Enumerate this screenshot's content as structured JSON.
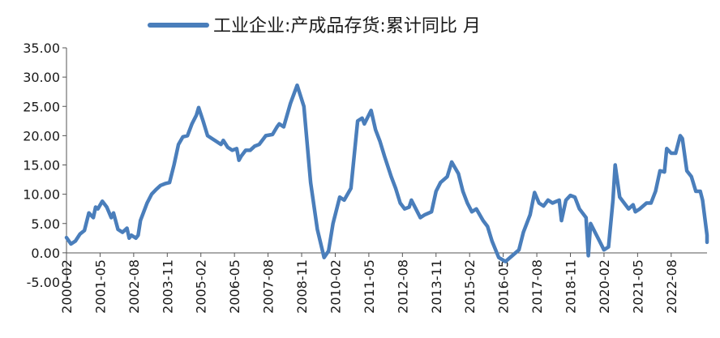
{
  "chart_data": {
    "type": "line",
    "legend": {
      "position": "top"
    },
    "grid": false,
    "ylim": [
      -5,
      35
    ],
    "y_ticks": [
      "35.00",
      "30.00",
      "25.00",
      "20.00",
      "15.00",
      "10.00",
      "5.00",
      "0.00",
      "-5.00"
    ],
    "x_range": [
      "2000-02",
      "2023-12"
    ],
    "x_ticks": [
      "2000-02",
      "2001-05",
      "2002-08",
      "2003-11",
      "2005-02",
      "2006-05",
      "2007-08",
      "2008-11",
      "2010-02",
      "2011-05",
      "2012-08",
      "2013-11",
      "2015-02",
      "2016-05",
      "2017-08",
      "2018-11",
      "2020-02",
      "2021-05",
      "2022-08"
    ],
    "series": [
      {
        "name": "工业企业:产成品存货:累计同比 月",
        "color": "#4a7ebb",
        "points": [
          [
            "2000-02",
            2.6
          ],
          [
            "2000-04",
            1.5
          ],
          [
            "2000-06",
            2.0
          ],
          [
            "2000-08",
            3.2
          ],
          [
            "2000-10",
            3.8
          ],
          [
            "2000-12",
            6.8
          ],
          [
            "2001-02",
            6.0
          ],
          [
            "2001-03",
            7.8
          ],
          [
            "2001-04",
            7.5
          ],
          [
            "2001-06",
            8.8
          ],
          [
            "2001-08",
            7.8
          ],
          [
            "2001-10",
            6.0
          ],
          [
            "2001-11",
            6.8
          ],
          [
            "2002-01",
            4.0
          ],
          [
            "2002-03",
            3.5
          ],
          [
            "2002-05",
            4.2
          ],
          [
            "2002-06",
            2.5
          ],
          [
            "2002-07",
            3.0
          ],
          [
            "2002-09",
            2.5
          ],
          [
            "2002-10",
            3.0
          ],
          [
            "2002-11",
            5.5
          ],
          [
            "2003-02",
            8.5
          ],
          [
            "2003-04",
            10.0
          ],
          [
            "2003-06",
            10.8
          ],
          [
            "2003-08",
            11.5
          ],
          [
            "2003-10",
            11.8
          ],
          [
            "2003-12",
            12.0
          ],
          [
            "2004-02",
            15.0
          ],
          [
            "2004-04",
            18.5
          ],
          [
            "2004-06",
            19.8
          ],
          [
            "2004-08",
            20.0
          ],
          [
            "2004-10",
            22.0
          ],
          [
            "2004-12",
            23.5
          ],
          [
            "2005-01",
            24.8
          ],
          [
            "2005-03",
            22.5
          ],
          [
            "2005-05",
            20.0
          ],
          [
            "2005-07",
            19.5
          ],
          [
            "2005-09",
            19.0
          ],
          [
            "2005-11",
            18.5
          ],
          [
            "2005-12",
            19.2
          ],
          [
            "2006-02",
            18.0
          ],
          [
            "2006-04",
            17.5
          ],
          [
            "2006-06",
            17.8
          ],
          [
            "2006-07",
            15.8
          ],
          [
            "2006-08",
            16.5
          ],
          [
            "2006-10",
            17.5
          ],
          [
            "2006-12",
            17.5
          ],
          [
            "2007-02",
            18.2
          ],
          [
            "2007-04",
            18.5
          ],
          [
            "2007-06",
            19.5
          ],
          [
            "2007-07",
            20.0
          ],
          [
            "2007-10",
            20.2
          ],
          [
            "2007-12",
            21.5
          ],
          [
            "2008-01",
            22.0
          ],
          [
            "2008-03",
            21.5
          ],
          [
            "2008-06",
            25.5
          ],
          [
            "2008-09",
            28.6
          ],
          [
            "2008-12",
            25.0
          ],
          [
            "2009-03",
            12.0
          ],
          [
            "2009-06",
            4.0
          ],
          [
            "2009-09",
            -0.8
          ],
          [
            "2009-11",
            0.3
          ],
          [
            "2010-01",
            5.0
          ],
          [
            "2010-04",
            9.5
          ],
          [
            "2010-06",
            9.0
          ],
          [
            "2010-09",
            11.0
          ],
          [
            "2010-12",
            22.5
          ],
          [
            "2011-02",
            23.0
          ],
          [
            "2011-03",
            22.0
          ],
          [
            "2011-06",
            24.3
          ],
          [
            "2011-08",
            21.0
          ],
          [
            "2011-10",
            19.0
          ],
          [
            "2011-12",
            16.5
          ],
          [
            "2012-03",
            13.0
          ],
          [
            "2012-05",
            11.0
          ],
          [
            "2012-07",
            8.5
          ],
          [
            "2012-09",
            7.5
          ],
          [
            "2012-11",
            7.8
          ],
          [
            "2012-12",
            9.0
          ],
          [
            "2013-02",
            7.5
          ],
          [
            "2013-04",
            6.0
          ],
          [
            "2013-06",
            6.5
          ],
          [
            "2013-09",
            7.0
          ],
          [
            "2013-11",
            10.5
          ],
          [
            "2014-01",
            12.0
          ],
          [
            "2014-04",
            13.0
          ],
          [
            "2014-06",
            15.5
          ],
          [
            "2014-09",
            13.5
          ],
          [
            "2014-11",
            10.5
          ],
          [
            "2015-01",
            8.5
          ],
          [
            "2015-03",
            7.0
          ],
          [
            "2015-05",
            7.5
          ],
          [
            "2015-08",
            5.5
          ],
          [
            "2015-10",
            4.5
          ],
          [
            "2015-12",
            2.0
          ],
          [
            "2016-03",
            -0.8
          ],
          [
            "2016-06",
            -1.5
          ],
          [
            "2016-09",
            -0.5
          ],
          [
            "2016-12",
            0.5
          ],
          [
            "2017-02",
            3.5
          ],
          [
            "2017-05",
            6.5
          ],
          [
            "2017-07",
            10.3
          ],
          [
            "2017-09",
            8.5
          ],
          [
            "2017-11",
            8.0
          ],
          [
            "2018-01",
            9.0
          ],
          [
            "2018-03",
            8.5
          ],
          [
            "2018-06",
            9.0
          ],
          [
            "2018-07",
            5.5
          ],
          [
            "2018-09",
            9.0
          ],
          [
            "2018-11",
            9.8
          ],
          [
            "2019-01",
            9.5
          ],
          [
            "2019-03",
            7.5
          ],
          [
            "2019-06",
            6.0
          ],
          [
            "2019-07",
            -0.5
          ],
          [
            "2019-08",
            5.0
          ],
          [
            "2019-10",
            3.5
          ],
          [
            "2019-12",
            2.0
          ],
          [
            "2020-02",
            0.5
          ],
          [
            "2020-04",
            1.0
          ],
          [
            "2020-06",
            9.0
          ],
          [
            "2020-07",
            15.0
          ],
          [
            "2020-09",
            9.5
          ],
          [
            "2020-11",
            8.5
          ],
          [
            "2021-01",
            7.5
          ],
          [
            "2021-03",
            8.2
          ],
          [
            "2021-04",
            7.0
          ],
          [
            "2021-06",
            7.5
          ],
          [
            "2021-09",
            8.5
          ],
          [
            "2021-11",
            8.5
          ],
          [
            "2022-01",
            10.5
          ],
          [
            "2022-03",
            14.0
          ],
          [
            "2022-05",
            13.8
          ],
          [
            "2022-06",
            17.8
          ],
          [
            "2022-08",
            17.0
          ],
          [
            "2022-10",
            17.0
          ],
          [
            "2022-12",
            20.0
          ],
          [
            "2023-01",
            19.5
          ],
          [
            "2023-03",
            14.0
          ],
          [
            "2023-05",
            13.0
          ],
          [
            "2023-07",
            10.5
          ],
          [
            "2023-09",
            10.5
          ],
          [
            "2023-10",
            9.0
          ],
          [
            "2023-12",
            3.0
          ],
          [
            "2024-02",
            1.8
          ],
          [
            "2024-04",
            2.8
          ]
        ]
      }
    ]
  }
}
